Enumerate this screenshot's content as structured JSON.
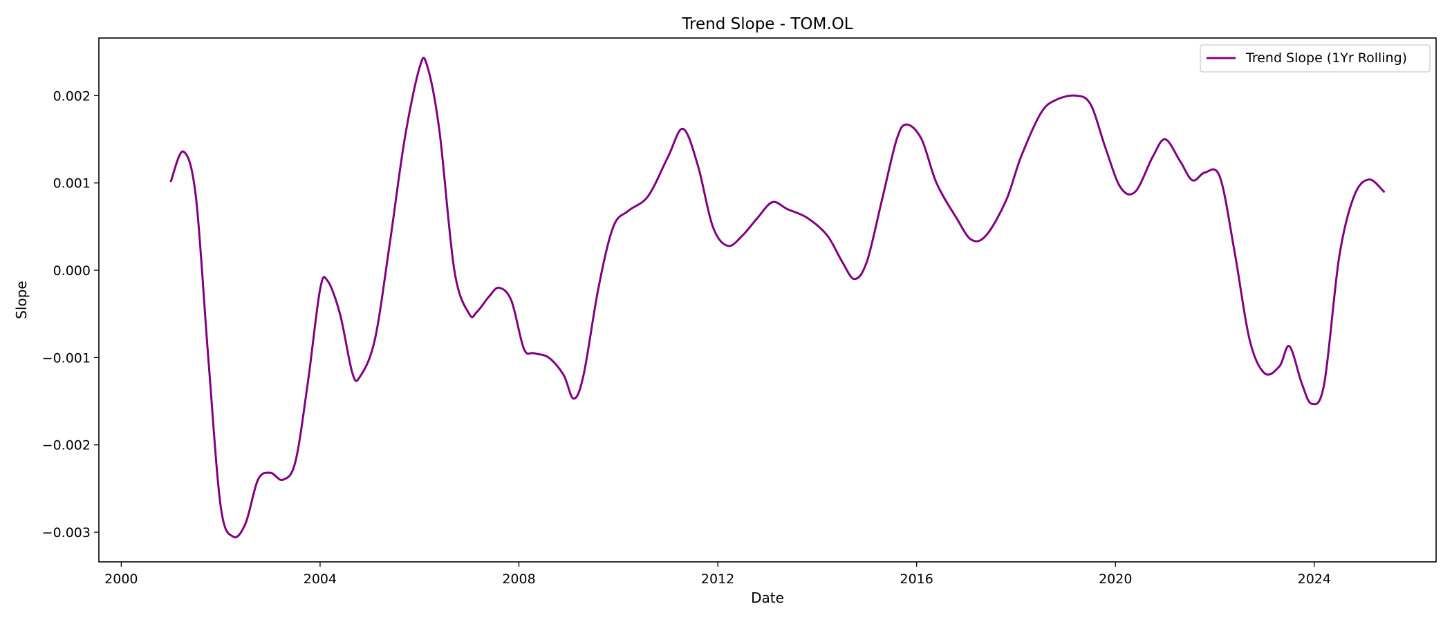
{
  "chart_data": {
    "type": "line",
    "title": "Trend Slope - TOM.OL",
    "xlabel": "Date",
    "ylabel": "Slope",
    "xlim": [
      1999.55,
      2026.45
    ],
    "ylim": [
      -0.00334,
      0.00266
    ],
    "x_ticks": [
      2000,
      2004,
      2008,
      2012,
      2016,
      2020,
      2024
    ],
    "x_tick_labels": [
      "2000",
      "2004",
      "2008",
      "2012",
      "2016",
      "2020",
      "2024"
    ],
    "y_ticks": [
      -0.003,
      -0.002,
      -0.001,
      0.0,
      0.001,
      0.002
    ],
    "y_tick_labels": [
      "−0.003",
      "−0.002",
      "−0.001",
      "0.000",
      "0.001",
      "0.002"
    ],
    "grid": false,
    "legend": {
      "position": "top-right"
    },
    "series": [
      {
        "name": "Trend Slope (1Yr Rolling)",
        "color": "#800080",
        "x": [
          2001.0,
          2001.25,
          2001.5,
          2001.75,
          2002.0,
          2002.25,
          2002.5,
          2002.75,
          2003.0,
          2003.25,
          2003.5,
          2003.75,
          2004.0,
          2004.15,
          2004.4,
          2004.65,
          2004.8,
          2005.1,
          2005.4,
          2005.7,
          2006.0,
          2006.15,
          2006.4,
          2006.7,
          2007.0,
          2007.15,
          2007.4,
          2007.6,
          2007.85,
          2008.1,
          2008.3,
          2008.6,
          2008.9,
          2009.1,
          2009.3,
          2009.6,
          2009.9,
          2010.2,
          2010.6,
          2011.0,
          2011.3,
          2011.6,
          2011.9,
          2012.2,
          2012.5,
          2012.8,
          2013.1,
          2013.4,
          2013.8,
          2014.2,
          2014.5,
          2014.75,
          2015.0,
          2015.3,
          2015.6,
          2015.8,
          2016.1,
          2016.4,
          2016.8,
          2017.1,
          2017.4,
          2017.8,
          2018.1,
          2018.5,
          2018.8,
          2019.2,
          2019.5,
          2019.8,
          2020.1,
          2020.4,
          2020.75,
          2021.0,
          2021.3,
          2021.55,
          2021.8,
          2022.1,
          2022.4,
          2022.7,
          2023.0,
          2023.3,
          2023.5,
          2023.75,
          2023.95,
          2024.2,
          2024.5,
          2024.8,
          2025.1,
          2025.4
        ],
        "values": [
          0.00102,
          0.00136,
          0.00085,
          -0.001,
          -0.0027,
          -0.00305,
          -0.0029,
          -0.0024,
          -0.00232,
          -0.0024,
          -0.0022,
          -0.0013,
          -0.00022,
          -0.00012,
          -0.0005,
          -0.00118,
          -0.00122,
          -0.0008,
          0.0003,
          0.0015,
          0.00232,
          0.00235,
          0.0016,
          0.0,
          -0.0005,
          -0.00048,
          -0.0003,
          -0.0002,
          -0.00035,
          -0.0009,
          -0.00095,
          -0.001,
          -0.0012,
          -0.00147,
          -0.0012,
          -0.0002,
          0.0005,
          0.00068,
          0.00085,
          0.0013,
          0.00162,
          0.0012,
          0.0005,
          0.00028,
          0.0004,
          0.0006,
          0.00078,
          0.0007,
          0.0006,
          0.0004,
          0.0001,
          -0.0001,
          0.0001,
          0.0008,
          0.0015,
          0.00167,
          0.0015,
          0.001,
          0.0006,
          0.00035,
          0.0004,
          0.0008,
          0.0013,
          0.0018,
          0.00195,
          0.002,
          0.0019,
          0.0014,
          0.00095,
          0.0009,
          0.0013,
          0.0015,
          0.00125,
          0.00103,
          0.00112,
          0.00107,
          0.0002,
          -0.0008,
          -0.00118,
          -0.0011,
          -0.00087,
          -0.0013,
          -0.00153,
          -0.0013,
          0.00015,
          0.00085,
          0.00104,
          0.0009
        ]
      }
    ]
  }
}
